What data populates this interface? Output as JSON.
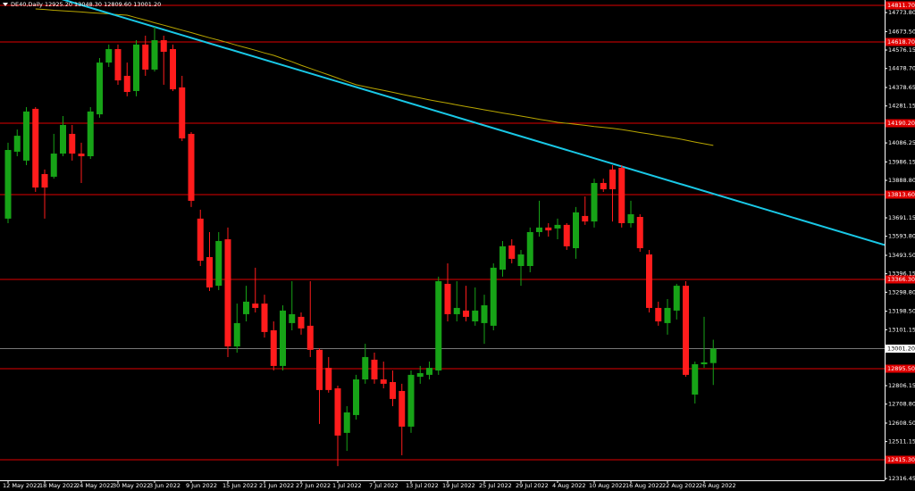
{
  "chart_data": {
    "type": "candlestick",
    "title": "DE40,Daily  12925.20 13048.30 12809.60 13001.20",
    "categories": [
      "12 May 2022",
      null,
      null,
      null,
      "18 May 2022",
      null,
      null,
      null,
      "24 May 2022",
      null,
      null,
      null,
      "30 May 2022",
      null,
      null,
      null,
      "3 Jun 2022",
      null,
      null,
      null,
      "9 Jun 2022",
      null,
      null,
      null,
      "15 Jun 2022",
      null,
      null,
      null,
      "21 Jun 2022",
      null,
      null,
      null,
      "27 Jun 2022",
      null,
      null,
      null,
      "1 Jul 2022",
      null,
      null,
      null,
      "7 Jul 2022",
      null,
      null,
      null,
      "13 Jul 2022",
      null,
      null,
      null,
      "19 Jul 2022",
      null,
      null,
      null,
      "25 Jul 2022",
      null,
      null,
      null,
      "29 Jul 2022",
      null,
      null,
      null,
      "4 Aug 2022",
      null,
      null,
      null,
      "10 Aug 2022",
      null,
      null,
      null,
      "16 Aug 2022",
      null,
      null,
      null,
      "22 Aug 2022",
      null,
      null,
      null,
      "26 Aug 2022",
      null
    ],
    "open": [
      13687,
      14040,
      13993,
      14266,
      13922,
      13908,
      14030,
      14134,
      14030,
      14016,
      14237,
      14510,
      14581,
      14440,
      14360,
      14605,
      14473,
      14628,
      14581,
      14379,
      14134,
      13687,
      13484,
      13333,
      13578,
      13013,
      13183,
      13239,
      13239,
      13098,
      12910,
      13136,
      13169,
      13122,
      12995,
      12900,
      12792,
      12557,
      12651,
      12839,
      12943,
      12839,
      12825,
      12778,
      12590,
      12853,
      12863,
      12886,
      13343,
      13183,
      13202,
      13145,
      13136,
      13122,
      13418,
      13545,
      13437,
      13437,
      13616,
      13640,
      13635,
      13654,
      13531,
      13701,
      13672,
      13875,
      13946,
      13955,
      13663,
      13696,
      13498,
      13216,
      13136,
      13202,
      13333,
      12759,
      12919,
      12925.2
    ],
    "high": [
      14087,
      14157,
      14275,
      14275,
      13946,
      14134,
      14228,
      14181,
      14087,
      14275,
      14534,
      14605,
      14605,
      14510,
      14628,
      14652,
      14699,
      14652,
      14605,
      14440,
      14143,
      13734,
      13616,
      13616,
      13640,
      13239,
      13333,
      13428,
      13286,
      13145,
      13230,
      13357,
      13192,
      13357,
      13004,
      12957,
      12806,
      12698,
      12863,
      13027,
      12980,
      12933,
      12886,
      12816,
      12886,
      12910,
      12933,
      13381,
      13451,
      13357,
      13333,
      13324,
      13286,
      13451,
      13569,
      13578,
      13522,
      13640,
      13781,
      13663,
      13687,
      13663,
      13748,
      13804,
      13898,
      13898,
      13969,
      13969,
      13781,
      13710,
      13522,
      13249,
      13263,
      13343,
      13357,
      12933,
      13169,
      13048.3
    ],
    "low": [
      13663,
      14016,
      13969,
      13828,
      13687,
      13898,
      14016,
      13993,
      13875,
      14002,
      14219,
      14487,
      14393,
      14332,
      14332,
      14440,
      14463,
      14393,
      14360,
      14096,
      13748,
      13437,
      13305,
      13310,
      12957,
      12980,
      13145,
      13192,
      13060,
      12886,
      12886,
      13098,
      13075,
      12957,
      12604,
      12769,
      12382,
      12462,
      12627,
      12816,
      12816,
      12792,
      12698,
      12439,
      12557,
      12816,
      12839,
      12863,
      13145,
      13145,
      13145,
      13122,
      13027,
      13098,
      13381,
      13451,
      13333,
      13404,
      13592,
      13592,
      13578,
      13522,
      13475,
      13654,
      13640,
      13828,
      13672,
      13640,
      13640,
      13512,
      13192,
      13122,
      13075,
      13155,
      12853,
      12712,
      12900,
      12809.6
    ],
    "close": [
      14049,
      14124,
      14252,
      13851,
      13851,
      14030,
      14181,
      14030,
      14016,
      14252,
      14510,
      14581,
      14416,
      14355,
      14605,
      14473,
      14628,
      14567,
      14369,
      14110,
      13781,
      13465,
      13324,
      13569,
      13013,
      13136,
      13249,
      13216,
      13089,
      12910,
      13202,
      13183,
      13108,
      12995,
      12783,
      12783,
      12543,
      12665,
      12839,
      12957,
      12839,
      12816,
      12736,
      12590,
      12863,
      12872,
      12900,
      13357,
      13183,
      13216,
      13169,
      13202,
      13230,
      13428,
      13541,
      13475,
      13498,
      13616,
      13640,
      13625,
      13654,
      13541,
      13720,
      13672,
      13875,
      13842,
      13842,
      13663,
      13710,
      13531,
      13216,
      13145,
      13216,
      13333,
      12863,
      12919,
      12929,
      13001.2
    ],
    "up_color": "#17a317",
    "down_color": "#ff1c1c",
    "ma": [
      null,
      null,
      null,
      14793,
      14790,
      14786,
      14783,
      14780,
      14777,
      14773,
      14770,
      14767,
      14763,
      14760,
      14747,
      14734,
      14720,
      14707,
      14694,
      14681,
      14668,
      14654,
      14641,
      14628,
      14615,
      14601,
      14588,
      14575,
      14561,
      14548,
      14531,
      14514,
      14496,
      14479,
      14462,
      14445,
      14428,
      14410,
      14393,
      14383,
      14373,
      14363,
      14353,
      14343,
      14333,
      14323,
      14313,
      14304,
      14296,
      14287,
      14278,
      14270,
      14261,
      14253,
      14244,
      14236,
      14228,
      14220,
      14211,
      14203,
      14195,
      14190,
      14184,
      14179,
      14173,
      14168,
      14163,
      14157,
      14149,
      14141,
      14134,
      14126,
      14118,
      14110,
      14101,
      14091,
      14082,
      14073
    ],
    "ma_color": "#b8a600",
    "trendline": [
      14929,
      13818
    ],
    "trend_color": "#19c8e6",
    "levels": [
      {
        "value": 14811.7,
        "label": "14811.70"
      },
      {
        "value": 14618.7,
        "label": "14618.70"
      },
      {
        "value": 14190.2,
        "label": "14190.20"
      },
      {
        "value": 13813.6,
        "label": "13813.60"
      },
      {
        "value": 13366.3,
        "label": "13366.30"
      },
      {
        "value": 12895.5,
        "label": "12895.50"
      },
      {
        "value": 12415.3,
        "label": "12415.30"
      }
    ],
    "level_color": "#e00000",
    "current_price": {
      "value": 13001.2,
      "label": "13001.20"
    },
    "ylim": [
      12307,
      14840
    ],
    "yticks": [
      {
        "value": 14773.8,
        "label": "14773.80"
      },
      {
        "value": 14673.5,
        "label": "14673.50"
      },
      {
        "value": 14576.15,
        "label": "14576.15"
      },
      {
        "value": 14478.7,
        "label": "14478.70"
      },
      {
        "value": 14378.65,
        "label": "14378.65"
      },
      {
        "value": 14281.15,
        "label": "14281.15"
      },
      {
        "value": 14086.25,
        "label": "14086.25"
      },
      {
        "value": 13986.15,
        "label": "13986.15"
      },
      {
        "value": 13888.8,
        "label": "13888.80"
      },
      {
        "value": 13691.15,
        "label": "13691.15"
      },
      {
        "value": 13593.8,
        "label": "13593.80"
      },
      {
        "value": 13493.5,
        "label": "13493.50"
      },
      {
        "value": 13396.15,
        "label": "13396.15"
      },
      {
        "value": 13298.8,
        "label": "13298.80"
      },
      {
        "value": 13198.5,
        "label": "13198.50"
      },
      {
        "value": 13101.15,
        "label": "13101.15"
      },
      {
        "value": 12806.15,
        "label": "12806.15"
      },
      {
        "value": 12708.8,
        "label": "12708.80"
      },
      {
        "value": 12608.5,
        "label": "12608.50"
      },
      {
        "value": 12511.15,
        "label": "12511.15"
      },
      {
        "value": 12316.45,
        "label": "12316.45"
      }
    ]
  }
}
